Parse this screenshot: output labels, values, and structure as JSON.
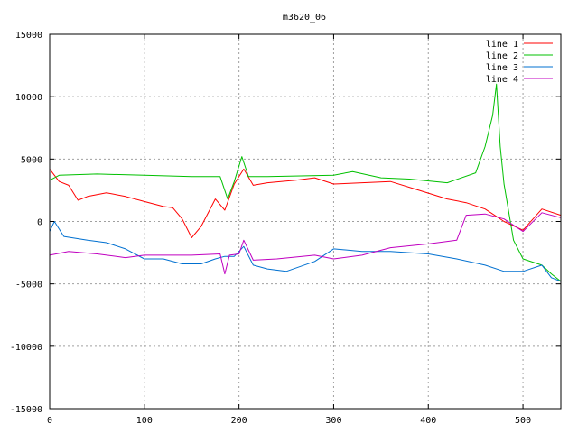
{
  "chart_data": {
    "type": "line",
    "title": "m3620_06",
    "xlabel": "",
    "ylabel": "",
    "xlim": [
      0,
      540
    ],
    "ylim": [
      -15000,
      15000
    ],
    "x_ticks": [
      0,
      100,
      200,
      300,
      400,
      500
    ],
    "y_ticks": [
      -15000,
      -10000,
      -5000,
      0,
      5000,
      10000,
      15000
    ],
    "grid": true,
    "legend_position": "top-right",
    "series": [
      {
        "name": "line 1",
        "color": "#ff0000",
        "x": [
          0,
          10,
          20,
          30,
          40,
          60,
          80,
          100,
          120,
          130,
          140,
          150,
          160,
          175,
          185,
          195,
          205,
          215,
          230,
          260,
          280,
          300,
          330,
          360,
          390,
          420,
          440,
          460,
          470,
          480,
          500,
          520,
          540
        ],
        "y": [
          4200,
          3200,
          2900,
          1700,
          2000,
          2300,
          2000,
          1600,
          1200,
          1100,
          200,
          -1300,
          -400,
          1800,
          900,
          3000,
          4200,
          2900,
          3100,
          3300,
          3500,
          3000,
          3100,
          3200,
          2500,
          1800,
          1500,
          1000,
          500,
          0,
          -700,
          1000,
          500
        ]
      },
      {
        "name": "line 2",
        "color": "#00c000",
        "x": [
          0,
          10,
          50,
          100,
          150,
          180,
          188,
          195,
          203,
          210,
          230,
          300,
          320,
          350,
          380,
          420,
          450,
          460,
          468,
          472,
          476,
          480,
          490,
          500,
          520,
          530,
          540
        ],
        "y": [
          3300,
          3700,
          3800,
          3700,
          3600,
          3600,
          1800,
          3200,
          5200,
          3600,
          3600,
          3700,
          4000,
          3500,
          3400,
          3100,
          3900,
          6000,
          8500,
          11000,
          6000,
          3000,
          -1500,
          -3000,
          -3500,
          -4200,
          -4800
        ]
      },
      {
        "name": "line 3",
        "color": "#0070d0",
        "x": [
          0,
          5,
          15,
          40,
          60,
          80,
          100,
          120,
          140,
          160,
          175,
          185,
          195,
          205,
          215,
          230,
          250,
          280,
          300,
          330,
          360,
          400,
          430,
          460,
          480,
          500,
          520,
          530,
          540
        ],
        "y": [
          -800,
          0,
          -1200,
          -1500,
          -1700,
          -2200,
          -3000,
          -3000,
          -3400,
          -3400,
          -3000,
          -2800,
          -2800,
          -2000,
          -3500,
          -3800,
          -4000,
          -3200,
          -2200,
          -2400,
          -2400,
          -2600,
          -3000,
          -3500,
          -4000,
          -4000,
          -3500,
          -4500,
          -4800
        ]
      },
      {
        "name": "line 4",
        "color": "#c000c0",
        "x": [
          0,
          20,
          50,
          80,
          100,
          150,
          180,
          185,
          190,
          200,
          205,
          215,
          240,
          280,
          300,
          330,
          360,
          400,
          430,
          440,
          460,
          480,
          500,
          520,
          540
        ],
        "y": [
          -2700,
          -2400,
          -2600,
          -2900,
          -2700,
          -2700,
          -2600,
          -4200,
          -2700,
          -2600,
          -1500,
          -3100,
          -3000,
          -2700,
          -3000,
          -2700,
          -2100,
          -1800,
          -1500,
          500,
          600,
          200,
          -800,
          700,
          300
        ]
      }
    ]
  }
}
